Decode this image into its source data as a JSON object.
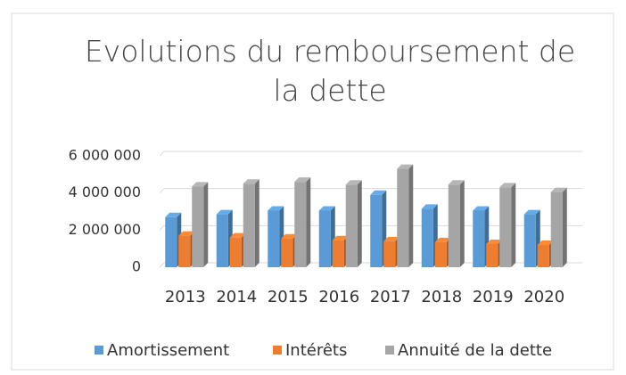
{
  "chart_data": {
    "type": "bar3d",
    "title": "Evolutions du remboursement de la dette",
    "categories": [
      "2013",
      "2014",
      "2015",
      "2016",
      "2017",
      "2018",
      "2019",
      "2020"
    ],
    "series": [
      {
        "name": "Amortissement",
        "color": "#5b9bd5",
        "values": [
          2700000,
          2850000,
          3050000,
          3050000,
          3900000,
          3150000,
          3050000,
          2850000
        ]
      },
      {
        "name": "Intérêts",
        "color": "#ed7d31",
        "values": [
          1700000,
          1600000,
          1550000,
          1450000,
          1400000,
          1350000,
          1250000,
          1200000
        ]
      },
      {
        "name": "Annuité de la dette",
        "color": "#a5a5a5",
        "values": [
          4350000,
          4500000,
          4600000,
          4450000,
          5300000,
          4450000,
          4300000,
          4050000
        ]
      }
    ],
    "ylim": [
      0,
      6000000
    ],
    "yticks": [
      0,
      {
        "value": 2000000,
        "label": "2 000 000"
      },
      {
        "value": 4000000,
        "label": "4 000 000"
      },
      {
        "value": 6000000,
        "label": "6 000 000"
      }
    ],
    "grid": true,
    "legend": "bottom"
  }
}
